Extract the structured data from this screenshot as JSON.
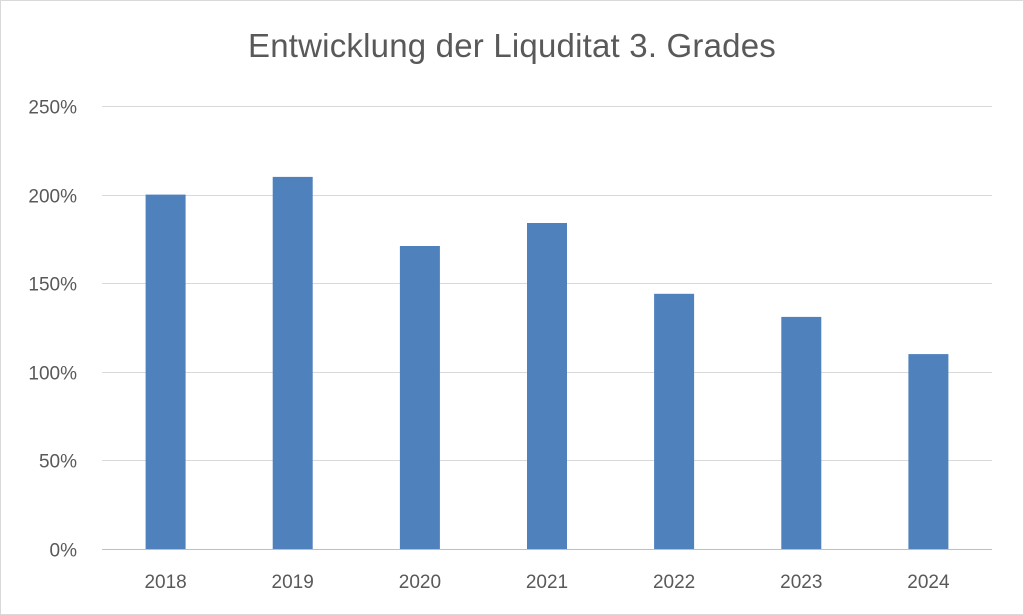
{
  "chart_data": {
    "type": "bar",
    "title": "Entwicklung der Liquditat 3. Grades",
    "categories": [
      "2018",
      "2019",
      "2020",
      "2021",
      "2022",
      "2023",
      "2024"
    ],
    "values": [
      2.0,
      2.1,
      1.71,
      1.84,
      1.44,
      1.31,
      1.1
    ],
    "ylim": [
      0,
      2.5
    ],
    "yticks": [
      0,
      0.5,
      1.0,
      1.5,
      2.0,
      2.5
    ],
    "ytick_labels": [
      "0%",
      "50%",
      "100%",
      "150%",
      "200%",
      "250%"
    ],
    "xlabel": "",
    "ylabel": "",
    "grid": "horizontal",
    "legend": "none",
    "bar_color": "#4f81bd"
  }
}
